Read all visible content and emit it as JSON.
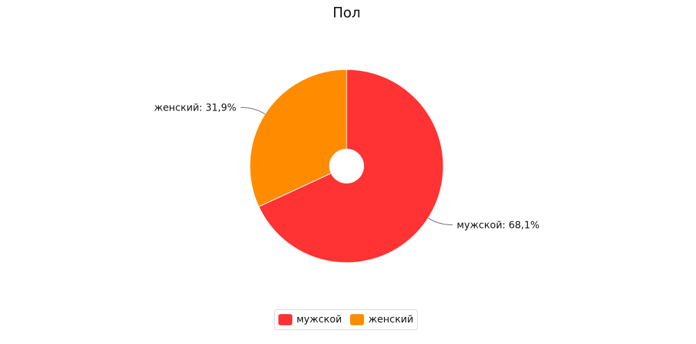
{
  "chart_data": {
    "type": "pie",
    "title": "Пол",
    "donut": true,
    "series": [
      {
        "name": "мужской",
        "value": 68.1,
        "label": "мужской: 68,1%",
        "color": "#ff3333"
      },
      {
        "name": "женский",
        "value": 31.9,
        "label": "женский: 31,9%",
        "color": "#ff8c00"
      }
    ],
    "legend": {
      "position": "bottom",
      "items": [
        "мужской",
        "женский"
      ]
    }
  }
}
